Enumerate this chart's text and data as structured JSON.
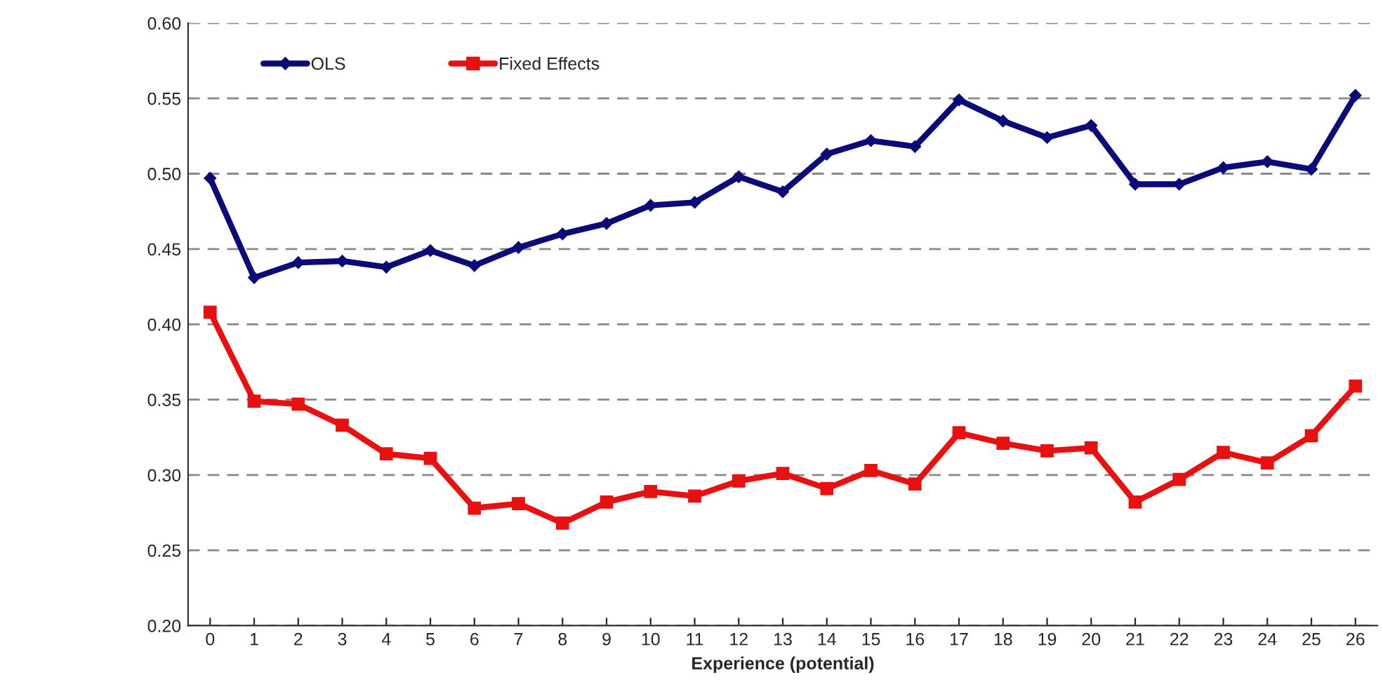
{
  "chart_data": {
    "type": "line",
    "xlabel": "Experience (potential)",
    "categories": [
      "0",
      "1",
      "2",
      "3",
      "4",
      "5",
      "6",
      "7",
      "8",
      "9",
      "10",
      "11",
      "12",
      "13",
      "14",
      "15",
      "16",
      "17",
      "18",
      "19",
      "20",
      "21",
      "22",
      "23",
      "24",
      "25",
      "26"
    ],
    "series": [
      {
        "name": "OLS",
        "color": "#0a0a78",
        "marker": "diamond",
        "values": [
          0.497,
          0.431,
          0.441,
          0.442,
          0.438,
          0.449,
          0.439,
          0.451,
          0.46,
          0.467,
          0.479,
          0.481,
          0.498,
          0.488,
          0.513,
          0.522,
          0.518,
          0.549,
          0.535,
          0.524,
          0.532,
          0.493,
          0.493,
          0.504,
          0.508,
          0.503,
          0.552
        ]
      },
      {
        "name": "Fixed Effects",
        "color": "#e81010",
        "marker": "square",
        "values": [
          0.408,
          0.349,
          0.347,
          0.333,
          0.314,
          0.311,
          0.278,
          0.281,
          0.268,
          0.282,
          0.289,
          0.286,
          0.296,
          0.301,
          0.291,
          0.303,
          0.294,
          0.328,
          0.321,
          0.316,
          0.318,
          0.282,
          0.297,
          0.315,
          0.308,
          0.326,
          0.359
        ]
      }
    ],
    "ylim": [
      0.2,
      0.6
    ],
    "yticks": [
      {
        "value": 0.2,
        "label": "0.20"
      },
      {
        "value": 0.25,
        "label": "0.25"
      },
      {
        "value": 0.3,
        "label": "0.30"
      },
      {
        "value": 0.35,
        "label": "0.35"
      },
      {
        "value": 0.4,
        "label": "0.40"
      },
      {
        "value": 0.45,
        "label": "0.45"
      },
      {
        "value": 0.5,
        "label": "0.50"
      },
      {
        "value": 0.55,
        "label": "0.55"
      },
      {
        "value": 0.6,
        "label": "0.60"
      }
    ],
    "grid": "y",
    "legend": "top left",
    "line_style": "solid"
  }
}
